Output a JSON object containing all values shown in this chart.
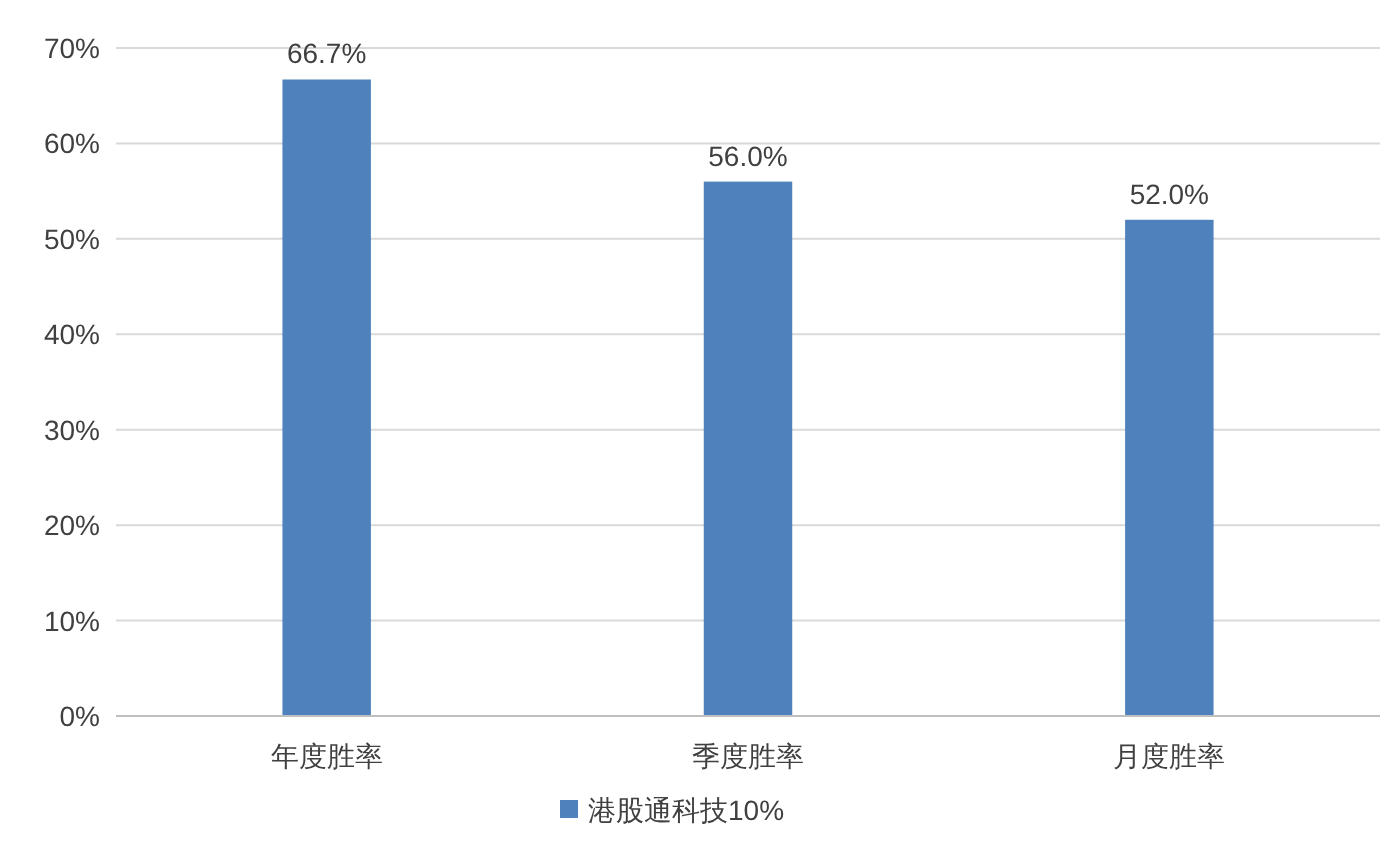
{
  "chart_data": {
    "type": "bar",
    "categories": [
      "年度胜率",
      "季度胜率",
      "月度胜率"
    ],
    "series": [
      {
        "name": "港股通科技10%",
        "color": "#4f81bd",
        "values": [
          66.7,
          56.0,
          52.0
        ],
        "value_labels": [
          "66.7%",
          "56.0%",
          "52.0%"
        ]
      }
    ],
    "ylim": [
      0,
      70
    ],
    "yticks": [
      {
        "value": 0,
        "label": "0%"
      },
      {
        "value": 10,
        "label": "10%"
      },
      {
        "value": 20,
        "label": "20%"
      },
      {
        "value": 30,
        "label": "30%"
      },
      {
        "value": 40,
        "label": "40%"
      },
      {
        "value": 50,
        "label": "50%"
      },
      {
        "value": 60,
        "label": "60%"
      },
      {
        "value": 70,
        "label": "70%"
      }
    ],
    "grid": "y",
    "legend": "bottom"
  }
}
